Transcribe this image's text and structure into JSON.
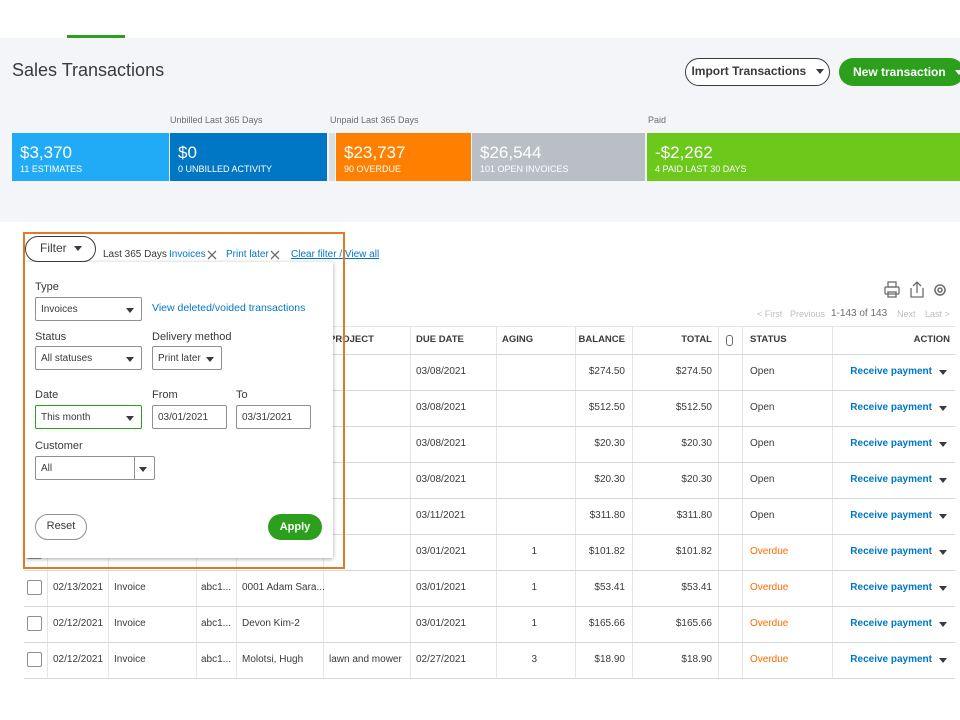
{
  "header": {
    "title": "Sales Transactions",
    "import_button": "Import Transactions",
    "new_button": "New transaction"
  },
  "money_bar": {
    "group_labels": [
      "Unbilled Last 365 Days",
      "Unpaid Last 365 Days",
      "Paid"
    ],
    "tiles": [
      {
        "amount": "$3,370",
        "caption": "11 ESTIMATES"
      },
      {
        "amount": "$0",
        "caption": "0 UNBILLED ACTIVITY"
      },
      {
        "amount": "$23,737",
        "caption": "90 OVERDUE"
      },
      {
        "amount": "$26,544",
        "caption": "101 OPEN INVOICES"
      },
      {
        "amount": "-$2,262",
        "caption": "4 PAID LAST 30 DAYS"
      }
    ]
  },
  "filter_bar": {
    "button": "Filter",
    "chips": [
      "Last 365 Days",
      "Invoices",
      "Print later"
    ],
    "clear_link": "Clear filter / View all"
  },
  "filter_panel": {
    "type_label": "Type",
    "type_value": "Invoices",
    "deleted_link": "View deleted/voided transactions",
    "status_label": "Status",
    "status_value": "All statuses",
    "delivery_label": "Delivery method",
    "delivery_value": "Print later",
    "date_label": "Date",
    "date_value": "This month",
    "from_label": "From",
    "from_value": "03/01/2021",
    "to_label": "To",
    "to_value": "03/31/2021",
    "customer_label": "Customer",
    "customer_value": "All",
    "reset": "Reset",
    "apply": "Apply"
  },
  "pagination": {
    "first": "< First",
    "previous": "Previous",
    "range": "1-143 of 143",
    "next": "Next",
    "last": "Last >"
  },
  "table": {
    "columns": [
      null,
      null,
      null,
      null,
      "PROJECT",
      "DUE DATE",
      "AGING",
      "BALANCE",
      "TOTAL",
      "STATUS",
      "ACTION"
    ],
    "rows": [
      [
        null,
        null,
        null,
        null,
        null,
        "03/08/2021",
        null,
        "$274.50",
        "$274.50",
        "Open",
        "Receive payment"
      ],
      [
        null,
        null,
        null,
        null,
        null,
        "03/08/2021",
        null,
        "$512.50",
        "$512.50",
        "Open",
        "Receive payment"
      ],
      [
        null,
        null,
        null,
        null,
        null,
        "03/08/2021",
        null,
        "$20.30",
        "$20.30",
        "Open",
        "Receive payment"
      ],
      [
        null,
        null,
        null,
        null,
        null,
        "03/08/2021",
        null,
        "$20.30",
        "$20.30",
        "Open",
        "Receive payment"
      ],
      [
        null,
        null,
        null,
        null,
        null,
        "03/11/2021",
        null,
        "$311.80",
        "$311.80",
        "Open",
        "Receive payment"
      ],
      [
        null,
        null,
        null,
        null,
        null,
        "03/01/2021",
        1,
        "$101.82",
        "$101.82",
        "Overdue",
        "Receive payment"
      ],
      [
        "02/13/2021",
        "Invoice",
        "abc1...",
        "0001 Adam Sara...",
        null,
        "03/01/2021",
        1,
        "$53.41",
        "$53.41",
        "Overdue",
        "Receive payment"
      ],
      [
        "02/12/2021",
        "Invoice",
        "abc1...",
        "Devon Kim-2",
        null,
        "03/01/2021",
        1,
        "$165.66",
        "$165.66",
        "Overdue",
        "Receive payment"
      ],
      [
        "02/12/2021",
        "Invoice",
        "abc1...",
        "Molotsi, Hugh",
        "lawn and mower",
        "02/27/2021",
        3,
        "$18.90",
        "$18.90",
        "Overdue",
        "Receive payment"
      ]
    ]
  }
}
